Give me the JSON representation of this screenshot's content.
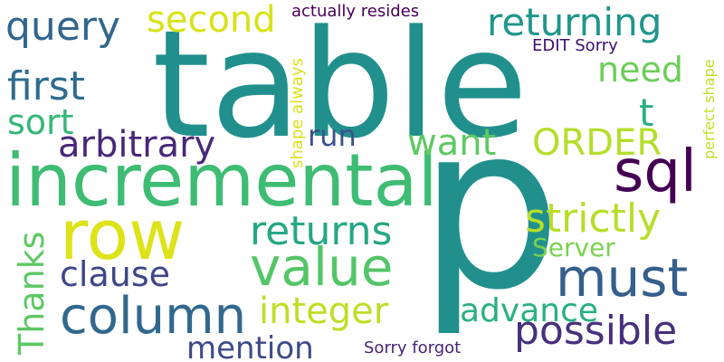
{
  "cloud": {
    "background": "#ffffff",
    "words": [
      {
        "text": "table",
        "color": "#21908d"
      },
      {
        "text": "p",
        "color": "#21908d"
      },
      {
        "text": "incremental",
        "color": "#3fbc73"
      },
      {
        "text": "row",
        "color": "#dde318"
      },
      {
        "text": "value",
        "color": "#54c568"
      },
      {
        "text": "column",
        "color": "#31688e"
      },
      {
        "text": "sql",
        "color": "#440154"
      },
      {
        "text": "must",
        "color": "#355f8d"
      },
      {
        "text": "query",
        "color": "#31668e"
      },
      {
        "text": "second",
        "color": "#d8e219"
      },
      {
        "text": "returning",
        "color": "#1f968b"
      },
      {
        "text": "first",
        "color": "#2f6c8e"
      },
      {
        "text": "need",
        "color": "#6ccd5a"
      },
      {
        "text": "sort",
        "color": "#35b779"
      },
      {
        "text": "t",
        "color": "#29af7f"
      },
      {
        "text": "arbitrary",
        "color": "#482878"
      },
      {
        "text": "run",
        "color": "#3b528b"
      },
      {
        "text": "want",
        "color": "#5ec962"
      },
      {
        "text": "ORDER",
        "color": "#b5de2b"
      },
      {
        "text": "strictly",
        "color": "#b8de29"
      },
      {
        "text": "returns",
        "color": "#26a784"
      },
      {
        "text": "Server",
        "color": "#7ad151"
      },
      {
        "text": "clause",
        "color": "#404688"
      },
      {
        "text": "integer",
        "color": "#bddf26"
      },
      {
        "text": "advance",
        "color": "#2ab07f"
      },
      {
        "text": "possible",
        "color": "#46307e"
      },
      {
        "text": "mention",
        "color": "#3e4a89"
      },
      {
        "text": "Thanks",
        "color": "#5cc863"
      },
      {
        "text": "actually resides",
        "color": "#440154"
      },
      {
        "text": "EDIT Sorry",
        "color": "#3b0f70"
      },
      {
        "text": "shape always",
        "color": "#d8e219"
      },
      {
        "text": "perfect shape",
        "color": "#c2df23"
      },
      {
        "text": "Sorry forgot",
        "color": "#482475"
      }
    ]
  }
}
